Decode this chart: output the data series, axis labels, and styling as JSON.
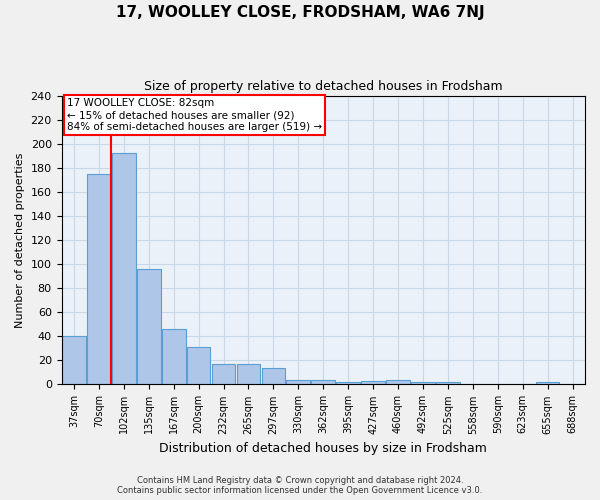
{
  "title": "17, WOOLLEY CLOSE, FRODSHAM, WA6 7NJ",
  "subtitle": "Size of property relative to detached houses in Frodsham",
  "xlabel": "Distribution of detached houses by size in Frodsham",
  "ylabel": "Number of detached properties",
  "footer_line1": "Contains HM Land Registry data © Crown copyright and database right 2024.",
  "footer_line2": "Contains public sector information licensed under the Open Government Licence v3.0.",
  "bins": [
    "37sqm",
    "70sqm",
    "102sqm",
    "135sqm",
    "167sqm",
    "200sqm",
    "232sqm",
    "265sqm",
    "297sqm",
    "330sqm",
    "362sqm",
    "395sqm",
    "427sqm",
    "460sqm",
    "492sqm",
    "525sqm",
    "558sqm",
    "590sqm",
    "623sqm",
    "655sqm",
    "688sqm"
  ],
  "values": [
    40,
    175,
    192,
    96,
    46,
    31,
    17,
    17,
    14,
    4,
    4,
    2,
    3,
    4,
    2,
    2,
    0,
    0,
    0,
    2,
    0
  ],
  "bar_color": "#aec6e8",
  "bar_edge_color": "#5a9fd4",
  "grid_color": "#c8d8e8",
  "background_color": "#eaf1f8",
  "fig_background": "#f0f0f0",
  "red_line_x": 1.5,
  "annotation_text": "17 WOOLLEY CLOSE: 82sqm\n← 15% of detached houses are smaller (92)\n84% of semi-detached houses are larger (519) →",
  "annotation_box_color": "white",
  "annotation_box_edge_color": "red",
  "ylim": [
    0,
    240
  ],
  "yticks": [
    0,
    20,
    40,
    60,
    80,
    100,
    120,
    140,
    160,
    180,
    200,
    220,
    240
  ],
  "title_fontsize": 11,
  "subtitle_fontsize": 9,
  "ylabel_fontsize": 8,
  "xlabel_fontsize": 9,
  "tick_fontsize": 8,
  "xtick_fontsize": 7
}
